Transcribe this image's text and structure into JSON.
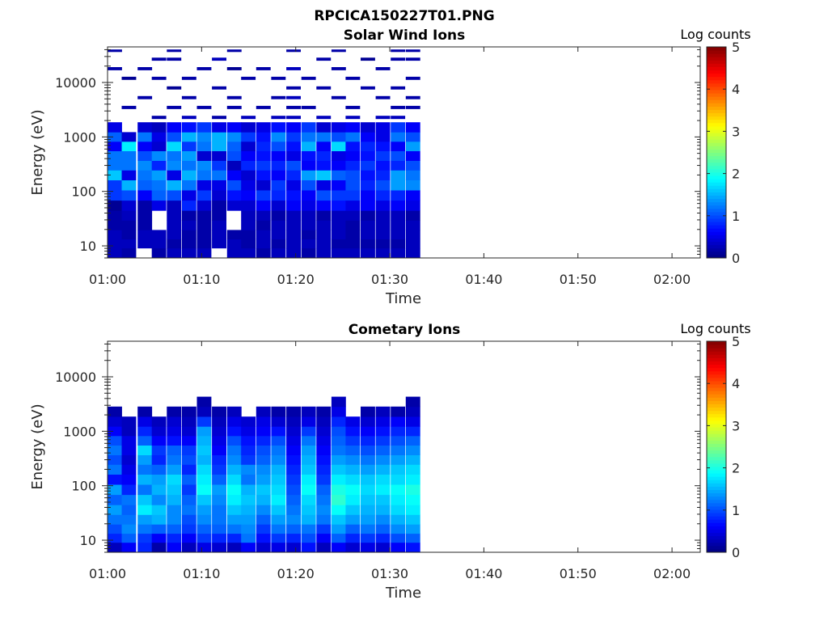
{
  "figure": {
    "title": "RPCICA150227T01.PNG"
  },
  "chart_data": [
    {
      "type": "heatmap",
      "title": "Solar Wind Ions",
      "xlabel": "Time",
      "ylabel": "Energy (eV)",
      "x_ticks": [
        "01:00",
        "01:10",
        "01:20",
        "01:30",
        "01:40",
        "01:50",
        "02:00"
      ],
      "xlim": [
        "01:00",
        "02:03"
      ],
      "y_scale": "log",
      "y_ticks": [
        "10",
        "100",
        "1000",
        "10000"
      ],
      "ylim": [
        6,
        45000
      ],
      "colorbar": {
        "label": "Log counts",
        "range": [
          0,
          5
        ],
        "ticks": [
          "0",
          "1",
          "2",
          "3",
          "4",
          "5"
        ],
        "colormap": "jet"
      },
      "time_columns_minutes": [
        0.0,
        1.5,
        3.2,
        4.7,
        6.3,
        7.9,
        9.5,
        11.1,
        12.7,
        14.2,
        15.8,
        17.4,
        19.0,
        20.6,
        22.2,
        23.8,
        25.3,
        26.9,
        28.5,
        30.1,
        31.7
      ],
      "column_width_minutes": 1.5,
      "energy_rows_eV": [
        7.5,
        11,
        16,
        24,
        36,
        55,
        85,
        130,
        200,
        300,
        450,
        680,
        1000,
        1500,
        2300,
        3500,
        5300,
        8000,
        12000,
        18000,
        27000,
        40000
      ],
      "log_counts": [
        [
          0.3,
          0.3,
          0.3,
          0.2,
          0.2,
          0.1,
          0.9,
          0.9,
          1.6,
          1.2,
          1.2,
          0.6,
          1.1,
          0.5,
          null,
          null,
          null,
          null,
          null,
          0.2,
          null,
          0.2
        ],
        [
          0.2,
          0.3,
          0.2,
          0.2,
          0.3,
          0.4,
          1.0,
          1.5,
          0.5,
          1.2,
          1.2,
          1.8,
          0.4,
          null,
          null,
          0.2,
          null,
          null,
          0.1,
          null,
          null,
          null
        ],
        [
          null,
          0.3,
          0.3,
          0.2,
          0.2,
          0.2,
          0.6,
          1.1,
          1.2,
          1.3,
          1.0,
          0.6,
          1.2,
          0.4,
          null,
          null,
          0.2,
          null,
          null,
          0.2,
          null,
          null
        ],
        [
          0.2,
          0.3,
          0.3,
          null,
          null,
          0.5,
          1.1,
          1.2,
          1.4,
          0.8,
          1.3,
          0.4,
          0.5,
          0.3,
          0.2,
          null,
          null,
          null,
          0.2,
          null,
          0.2,
          null
        ],
        [
          0.3,
          0.2,
          0.3,
          0.3,
          0.3,
          0.3,
          1.0,
          1.5,
          0.5,
          1.3,
          1.2,
          1.7,
          1.0,
          0.6,
          null,
          0.2,
          null,
          0.1,
          null,
          null,
          0.2,
          0.2
        ],
        [
          0.3,
          0.2,
          0.2,
          0.3,
          0.2,
          0.8,
          0.5,
          1.2,
          1.5,
          1.2,
          1.4,
          0.9,
          1.5,
          0.7,
          0.3,
          null,
          0.2,
          null,
          0.2,
          null,
          null,
          null
        ],
        [
          0.3,
          0.2,
          0.2,
          0.2,
          0.2,
          0.4,
          0.9,
          0.5,
          1.2,
          1.3,
          0.4,
          1.2,
          1.3,
          0.9,
          null,
          0.2,
          null,
          null,
          null,
          0.2,
          null,
          null
        ],
        [
          null,
          0.3,
          0.3,
          0.3,
          0.2,
          0.2,
          0.4,
          0.5,
          1.2,
          0.9,
          0.4,
          1.5,
          1.5,
          0.5,
          0.2,
          null,
          null,
          0.2,
          null,
          null,
          0.3,
          null
        ],
        [
          0.3,
          0.3,
          0.2,
          null,
          null,
          0.4,
          0.7,
          1.0,
          0.6,
          0.3,
          1.0,
          1.1,
          1.3,
          0.6,
          null,
          0.2,
          0.2,
          null,
          null,
          0.1,
          null,
          0.2
        ],
        [
          0.3,
          0.2,
          0.2,
          0.3,
          0.3,
          0.4,
          0.6,
          0.5,
          0.4,
          0.8,
          0.6,
          0.4,
          0.9,
          0.4,
          0.3,
          null,
          null,
          null,
          0.2,
          null,
          null,
          null
        ],
        [
          0.2,
          0.3,
          0.3,
          0.2,
          0.3,
          0.6,
          0.9,
          0.4,
          0.7,
          0.9,
          0.7,
          0.8,
          0.7,
          0.5,
          null,
          0.2,
          null,
          null,
          null,
          0.2,
          null,
          null
        ],
        [
          0.3,
          0.2,
          0.3,
          0.3,
          0.2,
          0.4,
          0.8,
          0.9,
          0.6,
          0.8,
          0.6,
          1.0,
          1.3,
          0.7,
          0.3,
          null,
          0.2,
          null,
          0.2,
          null,
          null,
          null
        ],
        [
          0.3,
          0.3,
          0.3,
          0.3,
          0.3,
          0.6,
          0.7,
          0.5,
          0.8,
          1.0,
          0.5,
          0.7,
          0.9,
          0.6,
          0.3,
          0.2,
          0.3,
          0.2,
          null,
          0.3,
          null,
          0.2
        ],
        [
          0.2,
          0.3,
          0.2,
          0.3,
          0.3,
          0.5,
          0.6,
          1.0,
          1.4,
          0.6,
          0.7,
          1.5,
          1.2,
          0.9,
          null,
          0.2,
          null,
          null,
          0.2,
          null,
          null,
          null
        ],
        [
          0.3,
          0.3,
          0.3,
          0.3,
          0.2,
          0.6,
          1.0,
          0.5,
          1.6,
          0.7,
          0.8,
          0.6,
          1.2,
          0.4,
          0.3,
          null,
          null,
          0.2,
          null,
          null,
          0.2,
          null
        ],
        [
          0.3,
          0.2,
          0.3,
          0.3,
          0.3,
          0.7,
          0.9,
          0.6,
          1.1,
          0.6,
          0.5,
          1.7,
          1.0,
          0.5,
          null,
          null,
          0.2,
          null,
          null,
          0.2,
          null,
          0.2
        ],
        [
          0.3,
          0.2,
          0.2,
          0.2,
          0.3,
          0.5,
          0.9,
          1.0,
          1.0,
          0.8,
          0.6,
          0.7,
          1.2,
          0.6,
          0.3,
          0.2,
          null,
          null,
          0.2,
          null,
          null,
          null
        ],
        [
          0.3,
          0.2,
          0.3,
          0.3,
          0.2,
          0.6,
          0.6,
          0.8,
          0.7,
          0.9,
          0.7,
          0.8,
          0.6,
          0.4,
          null,
          null,
          null,
          0.2,
          null,
          null,
          0.1,
          null
        ],
        [
          0.3,
          0.2,
          0.3,
          0.3,
          0.3,
          0.5,
          0.8,
          1.0,
          0.8,
          0.7,
          0.9,
          0.7,
          0.5,
          0.5,
          0.3,
          null,
          0.2,
          null,
          null,
          0.2,
          null,
          null
        ],
        [
          0.3,
          0.2,
          0.3,
          0.3,
          0.3,
          0.6,
          0.8,
          1.4,
          1.4,
          0.8,
          1.0,
          0.6,
          1.2,
          0.9,
          0.3,
          0.2,
          null,
          0.2,
          null,
          null,
          0.2,
          0.2
        ],
        [
          0.3,
          0.3,
          0.3,
          0.3,
          0.2,
          0.5,
          0.6,
          1.3,
          1.2,
          1.0,
          0.6,
          1.4,
          1.0,
          0.6,
          null,
          0.2,
          0.2,
          null,
          0.2,
          null,
          0.2,
          0.2
        ]
      ]
    },
    {
      "type": "heatmap",
      "title": "Cometary Ions",
      "xlabel": "Time",
      "ylabel": "Energy (eV)",
      "x_ticks": [
        "01:00",
        "01:10",
        "01:20",
        "01:30",
        "01:40",
        "01:50",
        "02:00"
      ],
      "xlim": [
        "01:00",
        "02:03"
      ],
      "y_scale": "log",
      "y_ticks": [
        "10",
        "100",
        "1000",
        "10000"
      ],
      "ylim": [
        6,
        45000
      ],
      "colorbar": {
        "label": "Log counts",
        "range": [
          0,
          5
        ],
        "ticks": [
          "0",
          "1",
          "2",
          "3",
          "4",
          "5"
        ],
        "colormap": "jet"
      },
      "time_columns_minutes": [
        0.0,
        1.5,
        3.2,
        4.7,
        6.3,
        7.9,
        9.5,
        11.1,
        12.7,
        14.2,
        15.8,
        17.4,
        19.0,
        20.6,
        22.2,
        23.8,
        25.3,
        26.9,
        28.5,
        30.1,
        31.7
      ],
      "column_width_minutes": 1.5,
      "energy_rows_eV": [
        7.5,
        11,
        16,
        24,
        36,
        55,
        85,
        130,
        200,
        300,
        450,
        680,
        1000,
        1500,
        2300,
        3500
      ],
      "log_counts": [
        [
          0.3,
          0.8,
          1.0,
          1.2,
          1.4,
          1.1,
          1.4,
          0.7,
          1.2,
          1.0,
          1.2,
          1.0,
          0.6,
          0.4,
          0.2,
          null
        ],
        [
          0.6,
          1.1,
          1.3,
          1.2,
          1.1,
          1.2,
          0.8,
          0.6,
          0.5,
          0.4,
          0.5,
          0.5,
          0.3,
          0.3,
          null,
          null
        ],
        [
          0.8,
          0.9,
          1.2,
          1.4,
          1.8,
          1.6,
          1.2,
          1.5,
          1.2,
          1.4,
          1.7,
          1.1,
          0.8,
          0.5,
          0.2,
          null
        ],
        [
          0.2,
          0.6,
          1.1,
          1.5,
          1.6,
          1.3,
          1.5,
          1.4,
          1.1,
          0.8,
          0.9,
          0.6,
          0.4,
          0.3,
          null,
          null
        ],
        [
          0.6,
          0.8,
          1.1,
          1.3,
          1.3,
          1.5,
          1.6,
          1.7,
          1.4,
          1.2,
          1.1,
          0.7,
          0.5,
          0.4,
          0.2,
          null
        ],
        [
          0.3,
          0.6,
          0.9,
          1.0,
          1.2,
          1.1,
          0.9,
          1.1,
          0.8,
          1.0,
          0.9,
          0.6,
          0.4,
          0.3,
          0.2,
          null
        ],
        [
          0.5,
          0.9,
          1.1,
          1.3,
          1.4,
          1.6,
          1.9,
          1.8,
          1.7,
          1.5,
          1.6,
          1.5,
          1.4,
          0.9,
          0.3,
          0.2
        ],
        [
          0.4,
          0.8,
          1.1,
          1.2,
          1.2,
          1.3,
          1.4,
          1.1,
          0.9,
          0.8,
          0.6,
          0.5,
          0.4,
          0.3,
          0.2,
          null
        ],
        [
          0.3,
          0.8,
          1.2,
          1.4,
          1.6,
          1.8,
          1.9,
          1.7,
          1.5,
          1.3,
          1.2,
          1.0,
          0.7,
          0.5,
          0.3,
          null
        ],
        [
          0.6,
          1.2,
          1.3,
          1.4,
          1.5,
          1.6,
          1.5,
          1.2,
          1.3,
          0.9,
          0.8,
          0.7,
          0.5,
          0.4,
          null,
          null
        ],
        [
          0.4,
          0.7,
          0.9,
          1.1,
          1.3,
          1.5,
          1.6,
          1.4,
          1.3,
          1.1,
          1.0,
          0.8,
          0.6,
          0.5,
          0.3,
          null
        ],
        [
          0.5,
          0.9,
          1.2,
          1.4,
          1.6,
          1.8,
          1.7,
          1.6,
          1.5,
          1.3,
          1.2,
          1.0,
          0.7,
          0.4,
          0.2,
          null
        ],
        [
          0.4,
          0.8,
          1.1,
          1.3,
          1.2,
          1.1,
          1.0,
          0.9,
          0.8,
          0.7,
          0.6,
          0.5,
          0.4,
          0.3,
          0.2,
          null
        ],
        [
          0.7,
          1.0,
          1.2,
          1.5,
          1.6,
          1.7,
          1.9,
          1.8,
          1.6,
          1.5,
          1.4,
          1.2,
          0.9,
          0.5,
          0.3,
          null
        ],
        [
          0.3,
          0.6,
          0.9,
          1.2,
          1.3,
          1.2,
          1.1,
          0.9,
          0.8,
          0.7,
          0.6,
          0.5,
          0.4,
          0.3,
          0.2,
          null
        ],
        [
          0.6,
          1.1,
          1.4,
          1.6,
          1.9,
          2.1,
          2.0,
          1.8,
          1.6,
          1.4,
          1.2,
          1.1,
          1.0,
          0.8,
          0.5,
          0.3
        ],
        [
          0.4,
          0.8,
          1.1,
          1.4,
          1.6,
          1.8,
          1.9,
          1.7,
          1.5,
          1.3,
          1.1,
          0.9,
          0.7,
          0.5,
          null,
          null
        ],
        [
          0.5,
          0.9,
          1.2,
          1.4,
          1.5,
          1.6,
          1.7,
          1.6,
          1.4,
          1.2,
          1.0,
          0.8,
          0.6,
          0.4,
          0.2,
          null
        ],
        [
          0.4,
          0.8,
          1.1,
          1.3,
          1.5,
          1.6,
          1.8,
          1.7,
          1.5,
          1.3,
          1.1,
          0.9,
          0.7,
          0.5,
          0.3,
          null
        ],
        [
          0.6,
          1.0,
          1.3,
          1.5,
          1.7,
          1.8,
          1.9,
          1.7,
          1.6,
          1.4,
          1.2,
          1.0,
          0.8,
          0.6,
          0.2,
          null
        ],
        [
          0.7,
          1.1,
          1.4,
          1.6,
          1.8,
          1.9,
          2.0,
          1.8,
          1.7,
          1.5,
          1.3,
          1.1,
          0.8,
          0.5,
          0.3,
          0.2
        ]
      ]
    }
  ]
}
